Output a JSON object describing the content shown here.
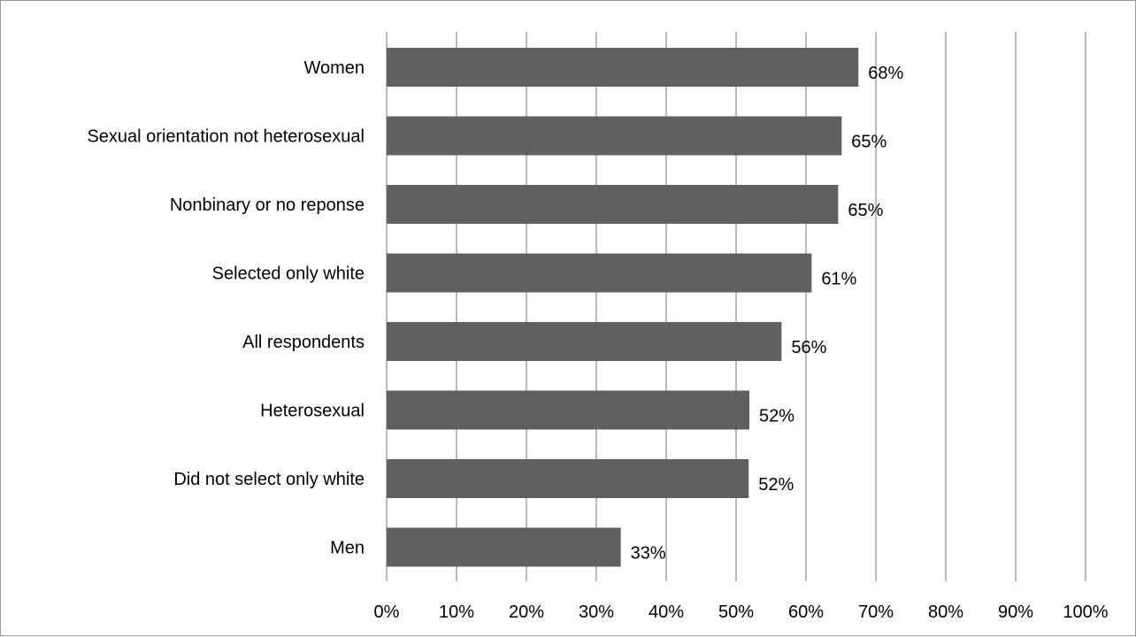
{
  "chart_data": {
    "type": "bar",
    "orientation": "horizontal",
    "categories": [
      "Women",
      "Sexual orientation not heterosexual",
      "Nonbinary or no reponse",
      "Selected only white",
      "All respondents",
      "Heterosexual",
      "Did not select only white",
      "Men"
    ],
    "values": [
      0.675,
      0.651,
      0.646,
      0.608,
      0.565,
      0.519,
      0.518,
      0.335
    ],
    "data_labels": [
      "68%",
      "65%",
      "65%",
      "61%",
      "56%",
      "52%",
      "52%",
      "33%"
    ],
    "xlim": [
      0,
      1
    ],
    "x_ticks": [
      0,
      0.1,
      0.2,
      0.3,
      0.4,
      0.5,
      0.6,
      0.7,
      0.8,
      0.9,
      1.0
    ],
    "x_tick_labels": [
      "0%",
      "10%",
      "20%",
      "30%",
      "40%",
      "50%",
      "60%",
      "70%",
      "80%",
      "90%",
      "100%"
    ],
    "title": "",
    "xlabel": "",
    "ylabel": "",
    "grid": "vertical",
    "legend": "none",
    "colors": {
      "bar": "#606060",
      "grid": "#8c8c8c",
      "border": "#9a9a9a",
      "text": "#000000"
    }
  }
}
